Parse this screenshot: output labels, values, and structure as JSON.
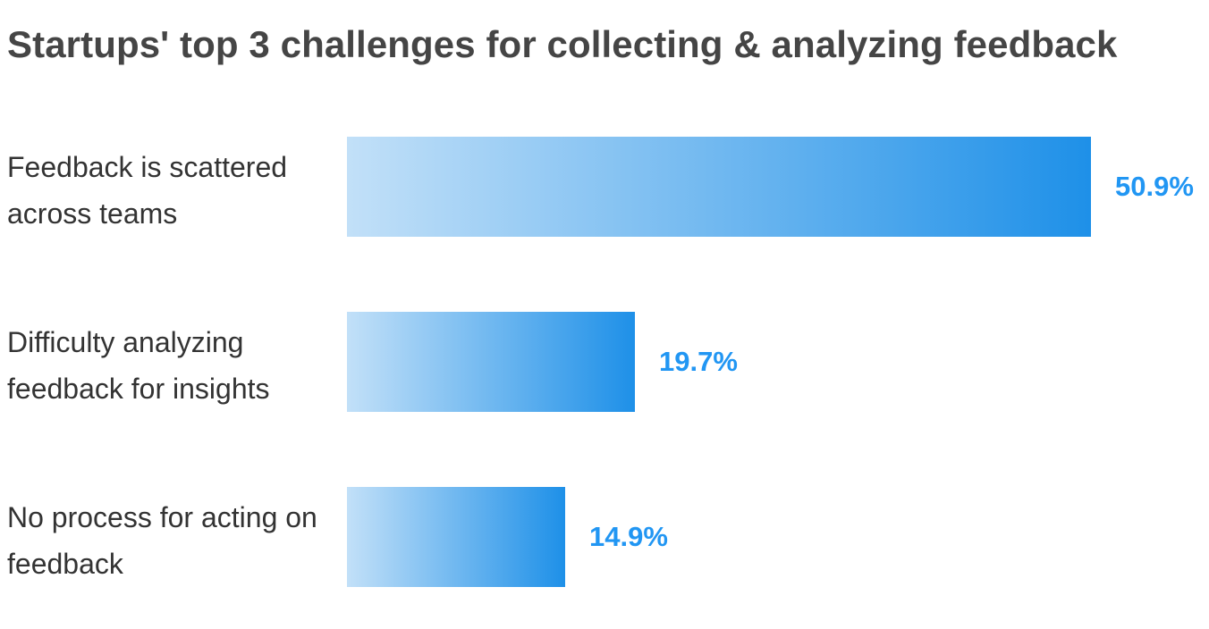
{
  "chart_data": {
    "type": "bar",
    "orientation": "horizontal",
    "title": "Startups' top 3 challenges for collecting & analyzing feedback",
    "categories": [
      "Feedback is scattered across teams",
      "Difficulty analyzing feedback for insights",
      "No process for acting on feedback"
    ],
    "values": [
      50.9,
      19.7,
      14.9
    ],
    "value_labels": [
      "50.9%",
      "19.7%",
      "14.9%"
    ],
    "unit": "%",
    "xlim": [
      0,
      50.9
    ],
    "grid": false,
    "legend": "none",
    "colors": {
      "bar_start": "#c2e0f8",
      "bar_end": "#1e90e8",
      "value_text": "#2196f3",
      "title_text": "#454545",
      "label_text": "#333333"
    }
  }
}
